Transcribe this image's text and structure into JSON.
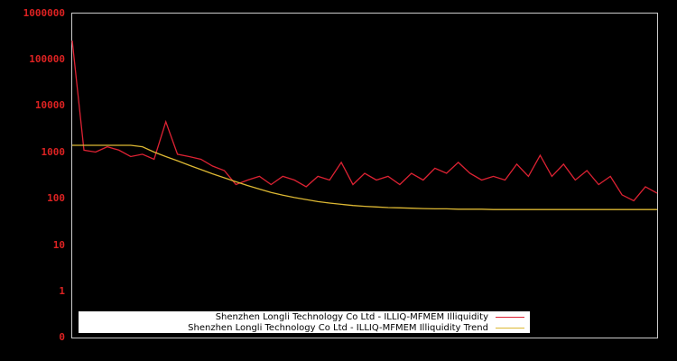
{
  "chart_data": {
    "type": "line",
    "title": "",
    "xlabel": "",
    "ylabel": "",
    "y_scale": "log",
    "y_tick_labels": [
      "1000000",
      "100000",
      "10000",
      "1000",
      "100",
      "10",
      "1",
      "0"
    ],
    "ylim": [
      0,
      1000000
    ],
    "grid": false,
    "legend_position": "bottom-inside",
    "x": [
      0,
      2,
      4,
      6,
      8,
      10,
      12,
      14,
      16,
      18,
      20,
      22,
      24,
      26,
      28,
      30,
      32,
      34,
      36,
      38,
      40,
      42,
      44,
      46,
      48,
      50,
      52,
      54,
      56,
      58,
      60,
      62,
      64,
      66,
      68,
      70,
      72,
      74,
      76,
      78,
      80,
      82,
      84,
      86,
      88,
      90,
      92,
      94,
      96,
      98,
      100
    ],
    "series": [
      {
        "name": "Shenzhen Longli Technology Co Ltd - ILLIQ-MFMEM Illiquidity",
        "color": "#dd2233",
        "values": [
          250000,
          1100,
          1000,
          1300,
          1100,
          800,
          900,
          700,
          4500,
          900,
          800,
          700,
          500,
          400,
          200,
          250,
          300,
          200,
          300,
          250,
          180,
          300,
          250,
          600,
          200,
          350,
          250,
          300,
          200,
          350,
          250,
          450,
          350,
          600,
          350,
          250,
          300,
          250,
          550,
          300,
          850,
          300,
          550,
          250,
          400,
          200,
          300,
          120,
          90,
          180,
          130
        ]
      },
      {
        "name": "Shenzhen Longli Technology Co Ltd - ILLIQ-MFMEM Illiquidity Trend",
        "color": "#ddb833",
        "values": [
          1400,
          1400,
          1400,
          1400,
          1400,
          1400,
          1300,
          1000,
          800,
          650,
          520,
          420,
          340,
          280,
          230,
          190,
          160,
          135,
          118,
          105,
          95,
          86,
          80,
          75,
          71,
          68,
          66,
          64,
          63,
          62,
          61,
          60,
          60,
          59,
          59,
          59,
          58,
          58,
          58,
          58,
          58,
          58,
          58,
          58,
          58,
          58,
          58,
          58,
          58,
          58,
          58
        ]
      }
    ]
  },
  "legend": {
    "items": [
      {
        "label": "Shenzhen Longli Technology Co Ltd - ILLIQ-MFMEM Illiquidity",
        "color": "#dd2233"
      },
      {
        "label": "Shenzhen Longli Technology Co Ltd - ILLIQ-MFMEM Illiquidity Trend",
        "color": "#ddb833"
      }
    ]
  },
  "colors": {
    "background": "#000000",
    "axis": "#cccccc",
    "tick_label": "#dd2222"
  }
}
